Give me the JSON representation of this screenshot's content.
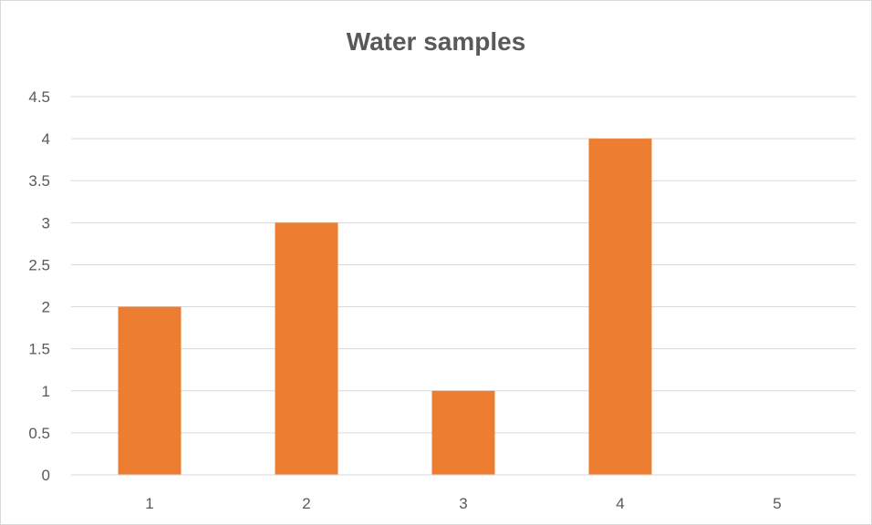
{
  "chart_data": {
    "type": "bar",
    "title": "Water samples",
    "xlabel": "",
    "ylabel": "",
    "categories": [
      "1",
      "2",
      "3",
      "4",
      "5"
    ],
    "values": [
      2,
      3,
      1,
      4,
      0
    ],
    "ylim": [
      0,
      4.5
    ],
    "yticks": [
      "0",
      "0.5",
      "1",
      "1.5",
      "2",
      "2.5",
      "3",
      "3.5",
      "4",
      "4.5"
    ],
    "grid": true,
    "legend": "none",
    "bar_color": "#ED7D31",
    "grid_color": "#D9D9D9",
    "text_color": "#595959"
  }
}
